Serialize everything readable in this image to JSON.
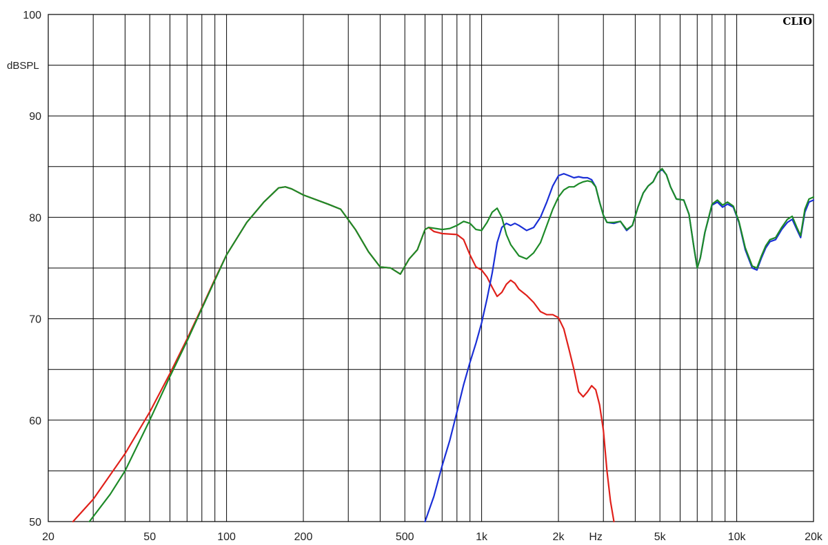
{
  "chart_data": {
    "type": "line",
    "brand": "CLIO",
    "xlabel": "Hz",
    "ylabel": "dBSPL",
    "x_scale": "log",
    "xlim": [
      20,
      20000
    ],
    "ylim": [
      50,
      100
    ],
    "grid": true,
    "x_ticks": [
      {
        "value": 20,
        "label": "20"
      },
      {
        "value": 50,
        "label": "50"
      },
      {
        "value": 100,
        "label": "100"
      },
      {
        "value": 200,
        "label": "200"
      },
      {
        "value": 500,
        "label": "500"
      },
      {
        "value": 1000,
        "label": "1k"
      },
      {
        "value": 2000,
        "label": "2k"
      },
      {
        "value": 5000,
        "label": "5k"
      },
      {
        "value": 10000,
        "label": "10k"
      },
      {
        "value": 20000,
        "label": "20k"
      }
    ],
    "y_ticks": [
      {
        "value": 100,
        "label": "100"
      },
      {
        "value": 90,
        "label": "90"
      },
      {
        "value": 80,
        "label": "80"
      },
      {
        "value": 70,
        "label": "70"
      },
      {
        "value": 60,
        "label": "60"
      },
      {
        "value": 50,
        "label": "50"
      }
    ],
    "series": [
      {
        "color": "#e0201a",
        "points": [
          [
            25,
            50
          ],
          [
            30,
            52.2
          ],
          [
            35,
            54.6
          ],
          [
            40,
            56.7
          ],
          [
            50,
            60.8
          ],
          [
            60,
            64.6
          ],
          [
            70,
            68
          ],
          [
            80,
            71.1
          ],
          [
            90,
            73.9
          ],
          [
            100,
            76.3
          ],
          [
            120,
            79.5
          ],
          [
            140,
            81.5
          ],
          [
            160,
            82.9
          ],
          [
            170,
            83
          ],
          [
            180,
            82.8
          ],
          [
            200,
            82.2
          ],
          [
            250,
            81.3
          ],
          [
            280,
            80.8
          ],
          [
            320,
            78.8
          ],
          [
            360,
            76.6
          ],
          [
            400,
            75.1
          ],
          [
            440,
            75
          ],
          [
            480,
            74.4
          ],
          [
            520,
            75.9
          ],
          [
            560,
            76.8
          ],
          [
            600,
            78.8
          ],
          [
            620,
            79
          ],
          [
            650,
            78.6
          ],
          [
            700,
            78.4
          ],
          [
            800,
            78.3
          ],
          [
            850,
            77.8
          ],
          [
            900,
            76.3
          ],
          [
            950,
            75.1
          ],
          [
            1000,
            74.8
          ],
          [
            1050,
            74.1
          ],
          [
            1100,
            73.1
          ],
          [
            1150,
            72.2
          ],
          [
            1200,
            72.6
          ],
          [
            1250,
            73.4
          ],
          [
            1300,
            73.8
          ],
          [
            1350,
            73.5
          ],
          [
            1400,
            72.9
          ],
          [
            1500,
            72.3
          ],
          [
            1600,
            71.6
          ],
          [
            1700,
            70.7
          ],
          [
            1800,
            70.4
          ],
          [
            1900,
            70.4
          ],
          [
            2000,
            70.1
          ],
          [
            2100,
            69
          ],
          [
            2200,
            67
          ],
          [
            2300,
            65
          ],
          [
            2400,
            62.8
          ],
          [
            2500,
            62.3
          ],
          [
            2600,
            62.8
          ],
          [
            2700,
            63.4
          ],
          [
            2800,
            63
          ],
          [
            2900,
            61.5
          ],
          [
            3000,
            59
          ],
          [
            3100,
            55
          ],
          [
            3200,
            52
          ],
          [
            3300,
            50
          ]
        ]
      },
      {
        "color": "#1a2fd6",
        "points": [
          [
            600,
            50
          ],
          [
            650,
            52.5
          ],
          [
            700,
            55.5
          ],
          [
            750,
            58
          ],
          [
            800,
            60.8
          ],
          [
            850,
            63.5
          ],
          [
            900,
            65.7
          ],
          [
            950,
            67.6
          ],
          [
            1000,
            69.6
          ],
          [
            1050,
            72
          ],
          [
            1100,
            74.5
          ],
          [
            1150,
            77.5
          ],
          [
            1200,
            79
          ],
          [
            1250,
            79.4
          ],
          [
            1300,
            79.2
          ],
          [
            1350,
            79.4
          ],
          [
            1400,
            79.2
          ],
          [
            1500,
            78.7
          ],
          [
            1600,
            79
          ],
          [
            1700,
            80
          ],
          [
            1800,
            81.5
          ],
          [
            1900,
            83.1
          ],
          [
            2000,
            84.1
          ],
          [
            2100,
            84.3
          ],
          [
            2200,
            84.1
          ],
          [
            2300,
            83.9
          ],
          [
            2400,
            84
          ],
          [
            2500,
            83.9
          ],
          [
            2600,
            83.9
          ],
          [
            2700,
            83.7
          ],
          [
            2800,
            83
          ],
          [
            2900,
            81.5
          ],
          [
            3000,
            80.2
          ],
          [
            3100,
            79.5
          ],
          [
            3300,
            79.4
          ],
          [
            3500,
            79.6
          ],
          [
            3700,
            78.7
          ],
          [
            3900,
            79.2
          ],
          [
            4100,
            81
          ],
          [
            4300,
            82.4
          ],
          [
            4500,
            83.1
          ],
          [
            4700,
            83.5
          ],
          [
            4900,
            84.4
          ],
          [
            5100,
            84.7
          ],
          [
            5300,
            84.2
          ],
          [
            5500,
            83
          ],
          [
            5800,
            81.8
          ],
          [
            6200,
            81.7
          ],
          [
            6500,
            80.3
          ],
          [
            6800,
            77
          ],
          [
            7000,
            75
          ],
          [
            7200,
            76
          ],
          [
            7500,
            78.5
          ],
          [
            8000,
            81.2
          ],
          [
            8400,
            81.5
          ],
          [
            8800,
            81
          ],
          [
            9200,
            81.3
          ],
          [
            9700,
            81
          ],
          [
            10200,
            79.5
          ],
          [
            10800,
            76.8
          ],
          [
            11500,
            75
          ],
          [
            12000,
            74.8
          ],
          [
            12500,
            76
          ],
          [
            13000,
            77
          ],
          [
            13500,
            77.6
          ],
          [
            14200,
            77.8
          ],
          [
            15000,
            78.8
          ],
          [
            15800,
            79.5
          ],
          [
            16500,
            79.8
          ],
          [
            17200,
            78.8
          ],
          [
            17800,
            78
          ],
          [
            18500,
            80.5
          ],
          [
            19200,
            81.5
          ],
          [
            20000,
            81.7
          ]
        ]
      },
      {
        "color": "#1d8a28",
        "points": [
          [
            29,
            50
          ],
          [
            35,
            52.7
          ],
          [
            40,
            55
          ],
          [
            50,
            60
          ],
          [
            60,
            64.3
          ],
          [
            70,
            67.8
          ],
          [
            80,
            71
          ],
          [
            90,
            73.8
          ],
          [
            100,
            76.3
          ],
          [
            120,
            79.5
          ],
          [
            140,
            81.5
          ],
          [
            160,
            82.9
          ],
          [
            170,
            83
          ],
          [
            180,
            82.8
          ],
          [
            200,
            82.2
          ],
          [
            250,
            81.3
          ],
          [
            280,
            80.8
          ],
          [
            320,
            78.8
          ],
          [
            360,
            76.6
          ],
          [
            400,
            75.1
          ],
          [
            440,
            75
          ],
          [
            480,
            74.4
          ],
          [
            520,
            75.9
          ],
          [
            560,
            76.8
          ],
          [
            600,
            78.8
          ],
          [
            620,
            79
          ],
          [
            700,
            78.8
          ],
          [
            750,
            78.9
          ],
          [
            800,
            79.2
          ],
          [
            850,
            79.6
          ],
          [
            900,
            79.4
          ],
          [
            950,
            78.8
          ],
          [
            1000,
            78.7
          ],
          [
            1050,
            79.5
          ],
          [
            1100,
            80.5
          ],
          [
            1150,
            80.9
          ],
          [
            1200,
            80
          ],
          [
            1250,
            78.3
          ],
          [
            1300,
            77.3
          ],
          [
            1400,
            76.2
          ],
          [
            1500,
            75.9
          ],
          [
            1600,
            76.5
          ],
          [
            1700,
            77.5
          ],
          [
            1800,
            79.2
          ],
          [
            1900,
            80.8
          ],
          [
            2000,
            82
          ],
          [
            2100,
            82.7
          ],
          [
            2200,
            83
          ],
          [
            2300,
            83
          ],
          [
            2400,
            83.3
          ],
          [
            2500,
            83.5
          ],
          [
            2600,
            83.6
          ],
          [
            2700,
            83.5
          ],
          [
            2800,
            83
          ],
          [
            2900,
            81.5
          ],
          [
            3000,
            80.2
          ],
          [
            3100,
            79.5
          ],
          [
            3300,
            79.5
          ],
          [
            3500,
            79.6
          ],
          [
            3700,
            78.8
          ],
          [
            3900,
            79.2
          ],
          [
            4100,
            81
          ],
          [
            4300,
            82.4
          ],
          [
            4500,
            83.1
          ],
          [
            4700,
            83.5
          ],
          [
            4900,
            84.4
          ],
          [
            5100,
            84.8
          ],
          [
            5300,
            84.2
          ],
          [
            5500,
            83
          ],
          [
            5800,
            81.8
          ],
          [
            6200,
            81.7
          ],
          [
            6500,
            80.3
          ],
          [
            6800,
            77
          ],
          [
            7000,
            75
          ],
          [
            7200,
            76
          ],
          [
            7500,
            78.5
          ],
          [
            8000,
            81.3
          ],
          [
            8400,
            81.7
          ],
          [
            8800,
            81.2
          ],
          [
            9200,
            81.5
          ],
          [
            9700,
            81.1
          ],
          [
            10200,
            79.6
          ],
          [
            10800,
            77
          ],
          [
            11500,
            75.2
          ],
          [
            12000,
            75
          ],
          [
            12500,
            76.2
          ],
          [
            13000,
            77.2
          ],
          [
            13500,
            77.8
          ],
          [
            14200,
            78
          ],
          [
            15000,
            79
          ],
          [
            15800,
            79.8
          ],
          [
            16500,
            80.1
          ],
          [
            17200,
            79
          ],
          [
            17800,
            78.2
          ],
          [
            18500,
            80.8
          ],
          [
            19200,
            81.8
          ],
          [
            20000,
            82
          ]
        ]
      }
    ]
  }
}
